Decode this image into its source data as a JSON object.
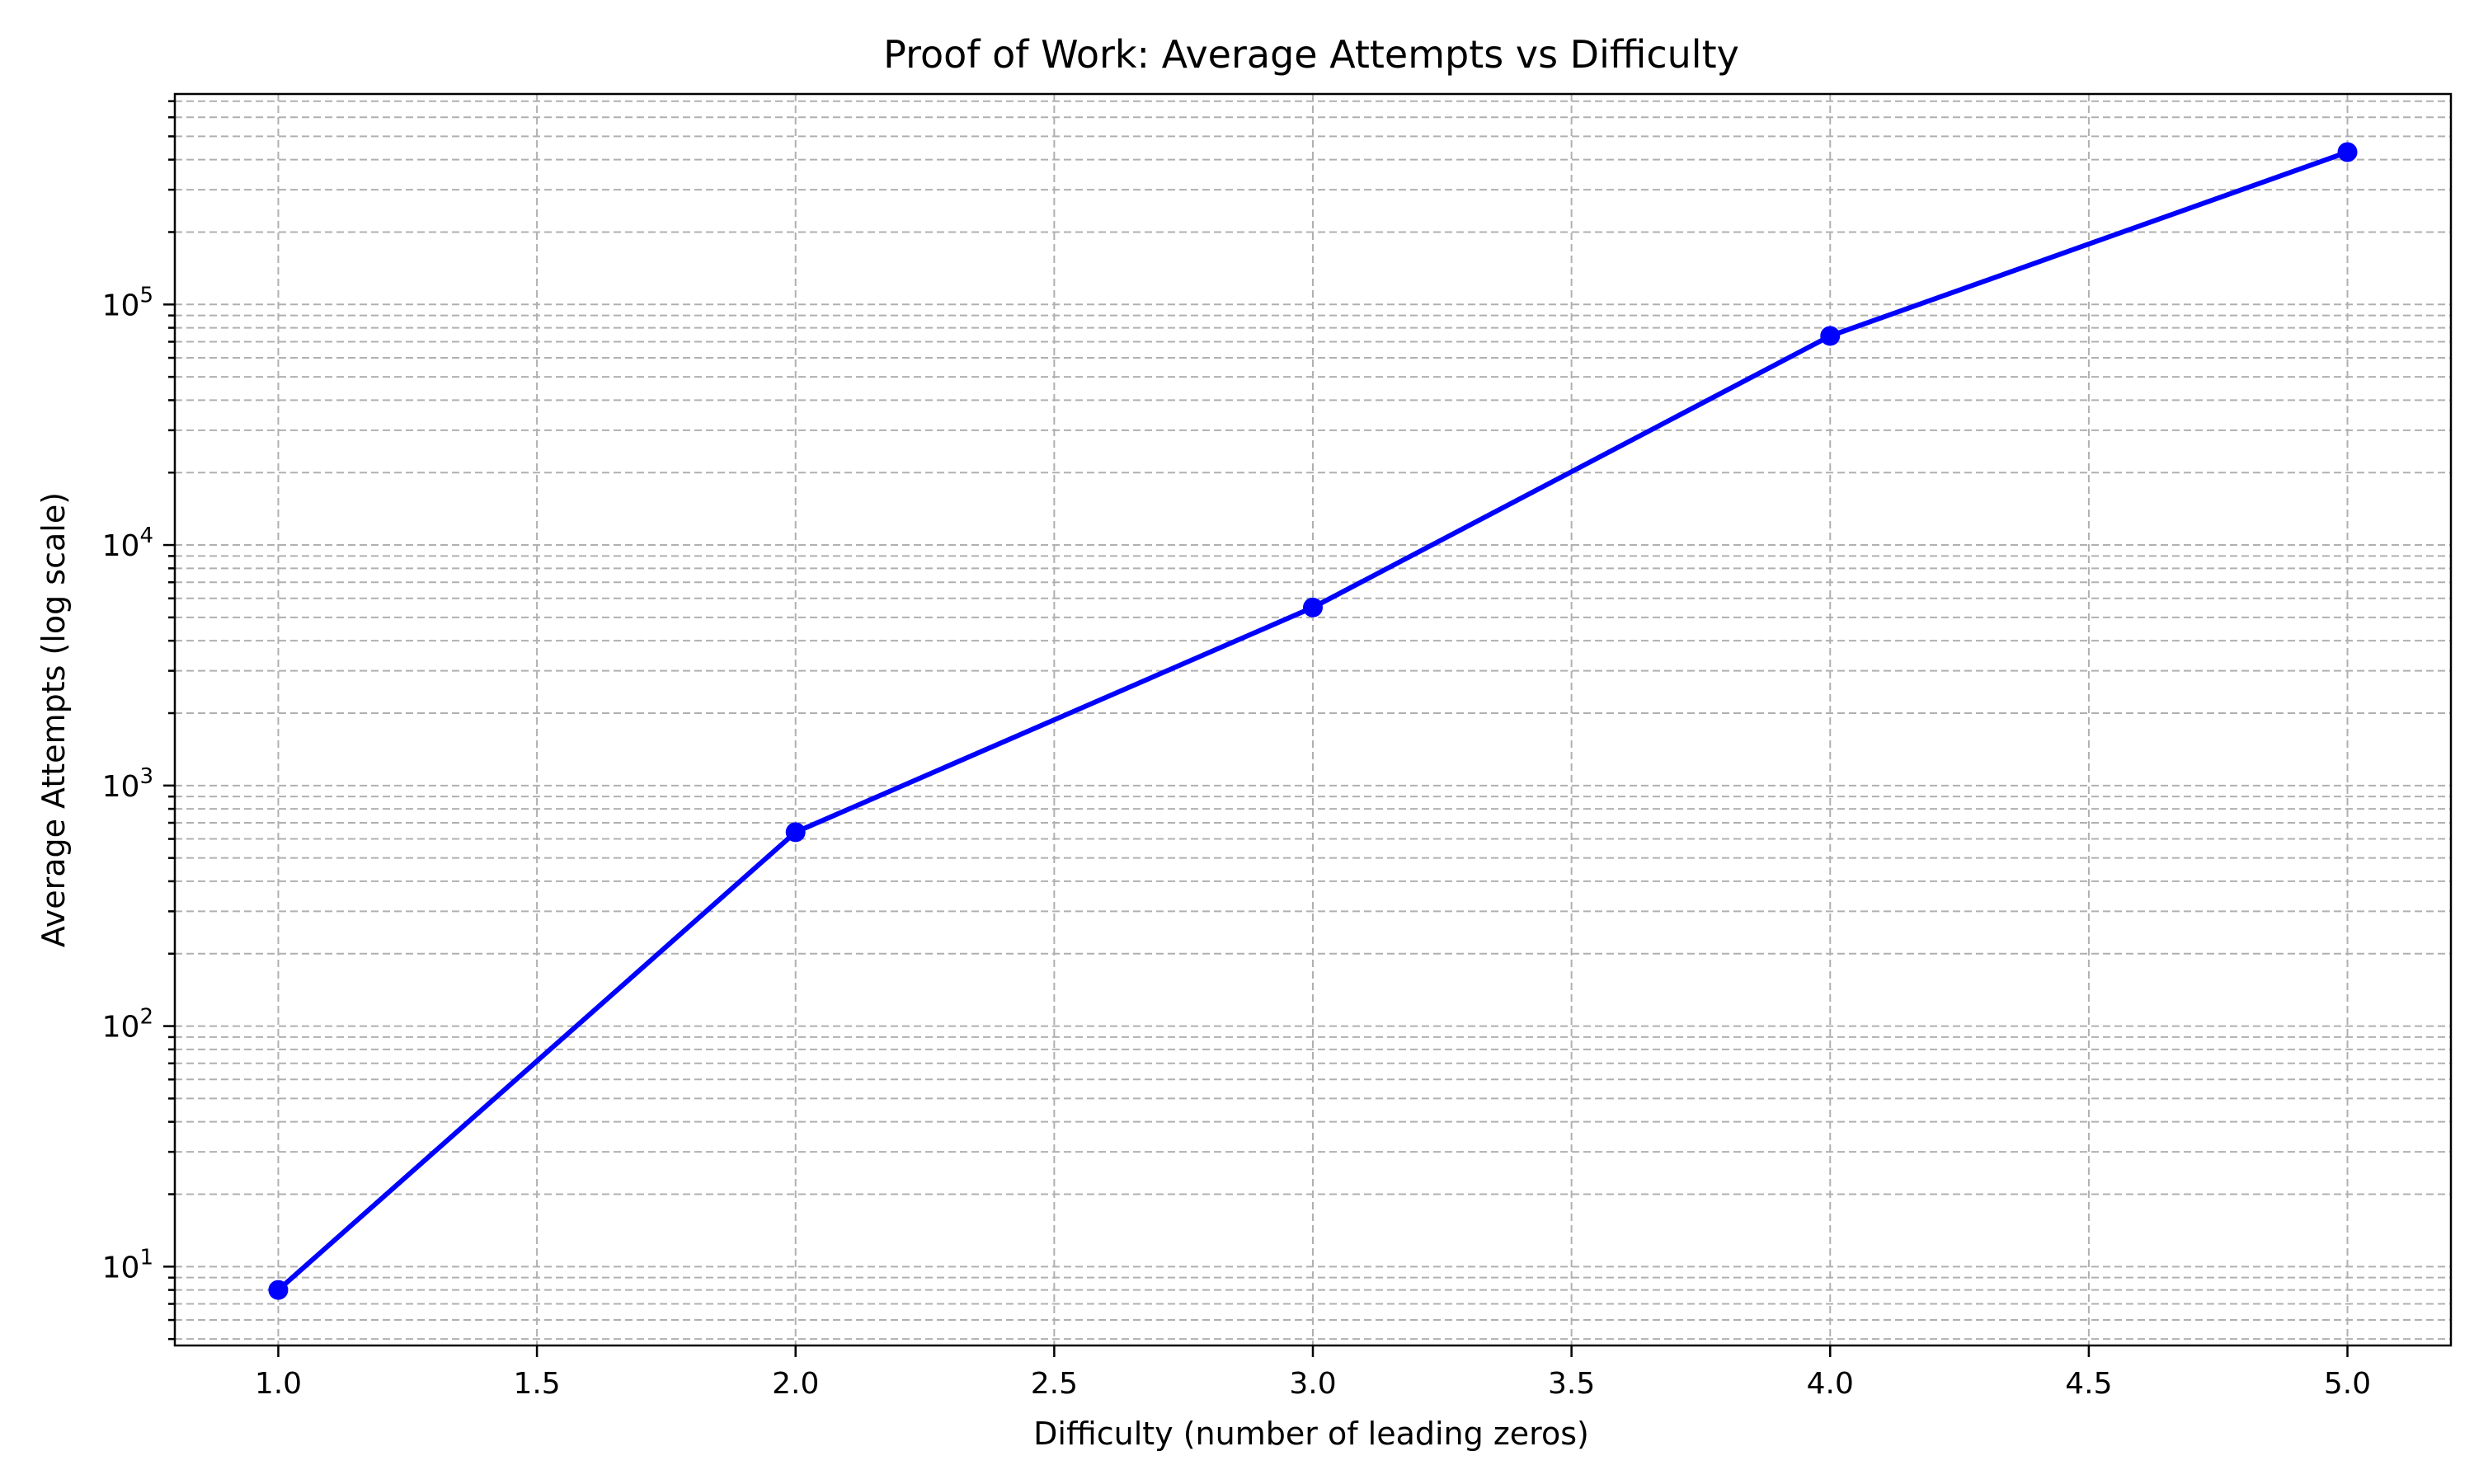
{
  "chart_data": {
    "type": "line",
    "title": "Proof of Work: Average Attempts vs Difficulty",
    "xlabel": "Difficulty (number of leading zeros)",
    "ylabel": "Average Attempts (log scale)",
    "y_scale": "log",
    "xlim": [
      0.8,
      5.2
    ],
    "ylim": [
      4.7,
      750000
    ],
    "x_ticks": [
      1.0,
      1.5,
      2.0,
      2.5,
      3.0,
      3.5,
      4.0,
      4.5,
      5.0
    ],
    "x_tick_labels": [
      "1.0",
      "1.5",
      "2.0",
      "2.5",
      "3.0",
      "3.5",
      "4.0",
      "4.5",
      "5.0"
    ],
    "y_ticks": [
      {
        "base": "10",
        "exp": "1",
        "value": 10
      },
      {
        "base": "10",
        "exp": "2",
        "value": 100
      },
      {
        "base": "10",
        "exp": "3",
        "value": 1000
      },
      {
        "base": "10",
        "exp": "4",
        "value": 10000
      },
      {
        "base": "10",
        "exp": "5",
        "value": 100000
      }
    ],
    "grid": true,
    "grid_minor": true,
    "series": [
      {
        "color": "#0000ff",
        "marker": "circle",
        "x": [
          1,
          2,
          3,
          4,
          5
        ],
        "y": [
          8,
          640,
          5500,
          74000,
          430000
        ]
      }
    ]
  }
}
